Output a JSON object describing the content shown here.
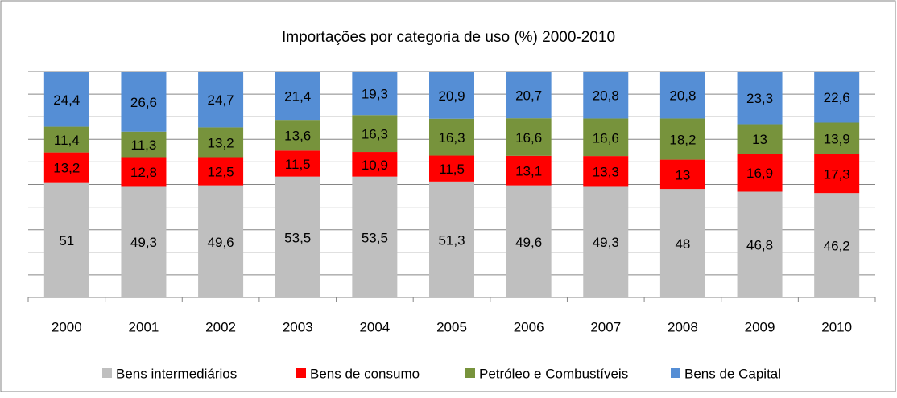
{
  "chart_data": {
    "type": "stacked_bar",
    "title": "Importações por categoria de uso (%) 2000-2010",
    "categories": [
      "2000",
      "2001",
      "2002",
      "2003",
      "2004",
      "2005",
      "2006",
      "2007",
      "2008",
      "2009",
      "2010"
    ],
    "series": [
      {
        "name": "Bens intermediários",
        "color": "#bfbfbf",
        "values": [
          51,
          49.3,
          49.6,
          53.5,
          53.5,
          51.3,
          49.6,
          49.3,
          48,
          46.8,
          46.2
        ],
        "value_labels": [
          "51",
          "49,3",
          "49,6",
          "53,5",
          "53,5",
          "51,3",
          "49,6",
          "49,3",
          "48",
          "46,8",
          "46,2"
        ]
      },
      {
        "name": "Bens de consumo",
        "color": "#ff0000",
        "values": [
          13.2,
          12.8,
          12.5,
          11.5,
          10.9,
          11.5,
          13.1,
          13.3,
          13,
          16.9,
          17.3
        ],
        "value_labels": [
          "13,2",
          "12,8",
          "12,5",
          "11,5",
          "10,9",
          "11,5",
          "13,1",
          "13,3",
          "13",
          "16,9",
          "17,3"
        ]
      },
      {
        "name": "Petróleo e Combustíveis",
        "color": "#77933c",
        "values": [
          11.4,
          11.3,
          13.2,
          13.6,
          16.3,
          16.3,
          16.6,
          16.6,
          18.2,
          13,
          13.9
        ],
        "value_labels": [
          "11,4",
          "11,3",
          "13,2",
          "13,6",
          "16,3",
          "16,3",
          "16,6",
          "16,6",
          "18,2",
          "13",
          "13,9"
        ]
      },
      {
        "name": "Bens de Capital",
        "color": "#558ed5",
        "values": [
          24.4,
          26.6,
          24.7,
          21.4,
          19.3,
          20.9,
          20.7,
          20.8,
          20.8,
          23.3,
          22.6
        ],
        "value_labels": [
          "24,4",
          "26,6",
          "24,7",
          "21,4",
          "19,3",
          "20,9",
          "20,7",
          "20,8",
          "20,8",
          "23,3",
          "22,6"
        ]
      }
    ],
    "ylim": [
      0,
      100
    ],
    "yticks": [
      0,
      10,
      20,
      30,
      40,
      50,
      60,
      70,
      80,
      90,
      100
    ],
    "grid": true,
    "legend": "bottom"
  }
}
